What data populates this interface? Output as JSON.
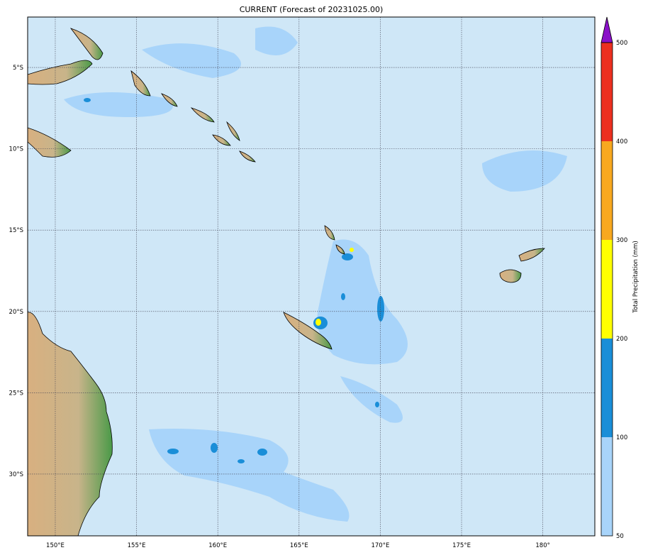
{
  "title": "CURRENT (Forecast of 20231025.00)",
  "chart_data": {
    "type": "heatmap",
    "subtype": "filled-contour map",
    "title": "CURRENT (Forecast of 20231025.00)",
    "lon_range": [
      148.3,
      183.2
    ],
    "lat_range": [
      -33.8,
      -1.9
    ],
    "grid": true,
    "x_tick_labels": [
      "150°E",
      "155°E",
      "160°E",
      "165°E",
      "170°E",
      "175°E",
      "180°"
    ],
    "x_ticks": [
      150,
      155,
      160,
      165,
      170,
      175,
      180
    ],
    "y_tick_labels": [
      "5°S",
      "10°S",
      "15°S",
      "20°S",
      "25°S",
      "30°S"
    ],
    "y_ticks": [
      -5,
      -10,
      -15,
      -20,
      -25,
      -30
    ],
    "ocean_color": "#cfe7f7",
    "colorbar": {
      "label": "Total Precipitation (mm)",
      "levels": [
        50,
        100,
        200,
        300,
        400,
        500
      ],
      "tick_labels": [
        "50",
        "100",
        "200",
        "300",
        "400",
        "500"
      ],
      "colors": [
        "#a8d4fa",
        "#1a8ed8",
        "#ffff00",
        "#f8a820",
        "#ec3020"
      ],
      "extend_color": "#8a10c8",
      "extend": "max",
      "placement": "right"
    }
  }
}
